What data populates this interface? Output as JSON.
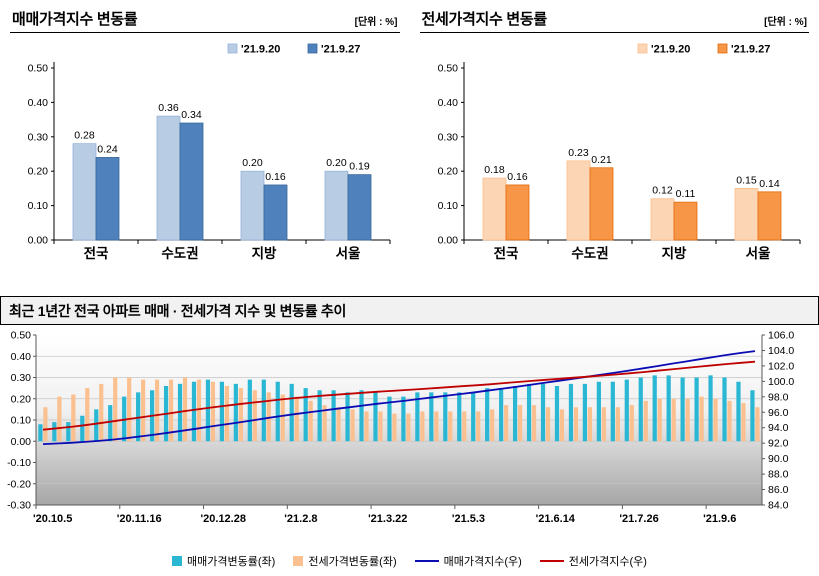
{
  "chart_data": [
    {
      "id": "sale",
      "type": "bar",
      "title": "매매가격지수 변동률",
      "unit_label": "[단위 : %]",
      "categories": [
        "전국",
        "수도권",
        "지방",
        "서울"
      ],
      "y_tick_labels": [
        "0.00",
        "0.10",
        "0.20",
        "0.30",
        "0.40",
        "0.50"
      ],
      "ylim": [
        0,
        0.5
      ],
      "series": [
        {
          "name": "'21.9.20",
          "color": "#b8cce4",
          "border": "#95b3d7",
          "values": [
            0.28,
            0.36,
            0.2,
            0.2
          ]
        },
        {
          "name": "'21.9.27",
          "color": "#4f81bd",
          "border": "#3a6799",
          "values": [
            0.24,
            0.34,
            0.16,
            0.19
          ]
        }
      ]
    },
    {
      "id": "jeonse",
      "type": "bar",
      "title": "전세가격지수 변동률",
      "unit_label": "[단위 : %]",
      "categories": [
        "전국",
        "수도권",
        "지방",
        "서울"
      ],
      "y_tick_labels": [
        "0.00",
        "0.10",
        "0.20",
        "0.30",
        "0.40",
        "0.50"
      ],
      "ylim": [
        0,
        0.5
      ],
      "series": [
        {
          "name": "'21.9.20",
          "color": "#fcd5b4",
          "border": "#fabf8f",
          "values": [
            0.18,
            0.23,
            0.12,
            0.15
          ]
        },
        {
          "name": "'21.9.27",
          "color": "#f79646",
          "border": "#e26b0a",
          "values": [
            0.16,
            0.21,
            0.11,
            0.14
          ]
        }
      ]
    },
    {
      "id": "trend",
      "type": "combo-bar-line",
      "title": "최근 1년간 전국 아파트 매매 · 전세가격 지수 및 변동률 추이",
      "x_tick_labels": [
        "'20.10.5",
        "'20.11.16",
        "'20.12.28",
        "'21.2.8",
        "'21.3.22",
        "'21.5.3",
        "'21.6.14",
        "'21.7.26",
        "'21.9.6"
      ],
      "x_tick_weeks": [
        0,
        6,
        12,
        18,
        24,
        30,
        36,
        42,
        48
      ],
      "left_axis": {
        "min": -0.3,
        "max": 0.5,
        "step": 0.1
      },
      "right_axis": {
        "min": 84,
        "max": 106,
        "step": 2
      },
      "left_tick_labels": [
        "0.50",
        "0.40",
        "0.30",
        "0.20",
        "0.10",
        "0.00",
        "-0.10",
        "-0.20",
        "-0.30"
      ],
      "right_tick_labels": [
        "106.0",
        "104.0",
        "102.0",
        "100.0",
        "98.0",
        "96.0",
        "94.0",
        "92.0",
        "90.0",
        "88.0",
        "86.0",
        "84.0"
      ],
      "bar_series": [
        {
          "name": "매매가격변동률(좌)",
          "color": "#29b7d3",
          "values": [
            0.08,
            0.09,
            0.09,
            0.12,
            0.15,
            0.17,
            0.21,
            0.23,
            0.24,
            0.26,
            0.27,
            0.28,
            0.29,
            0.28,
            0.27,
            0.29,
            0.29,
            0.28,
            0.27,
            0.25,
            0.24,
            0.24,
            0.23,
            0.24,
            0.23,
            0.21,
            0.21,
            0.23,
            0.23,
            0.23,
            0.23,
            0.23,
            0.25,
            0.25,
            0.26,
            0.27,
            0.27,
            0.26,
            0.27,
            0.27,
            0.28,
            0.28,
            0.29,
            0.3,
            0.31,
            0.31,
            0.3,
            0.3,
            0.31,
            0.3,
            0.28,
            0.24
          ]
        },
        {
          "name": "전세가격변동률(좌)",
          "color": "#fac08f",
          "values": [
            0.16,
            0.21,
            0.22,
            0.25,
            0.27,
            0.3,
            0.3,
            0.29,
            0.29,
            0.29,
            0.3,
            0.29,
            0.28,
            0.26,
            0.25,
            0.24,
            0.23,
            0.22,
            0.21,
            0.19,
            0.17,
            0.16,
            0.15,
            0.14,
            0.14,
            0.13,
            0.13,
            0.14,
            0.14,
            0.14,
            0.14,
            0.14,
            0.15,
            0.17,
            0.17,
            0.17,
            0.16,
            0.15,
            0.16,
            0.16,
            0.16,
            0.16,
            0.17,
            0.19,
            0.2,
            0.2,
            0.2,
            0.21,
            0.2,
            0.19,
            0.18,
            0.16
          ]
        }
      ],
      "line_series": [
        {
          "name": "매매가격지수(우)",
          "color": "#0b0bb4",
          "values": [
            91.88,
            91.96,
            92.05,
            92.16,
            92.3,
            92.47,
            92.66,
            92.88,
            93.11,
            93.36,
            93.61,
            93.88,
            94.16,
            94.42,
            94.68,
            94.95,
            95.23,
            95.5,
            95.75,
            95.99,
            96.22,
            96.45,
            96.66,
            96.89,
            97.11,
            97.31,
            97.51,
            97.73,
            97.95,
            98.17,
            98.38,
            98.6,
            98.84,
            99.08,
            99.32,
            99.58,
            99.84,
            100.08,
            100.34,
            100.6,
            100.86,
            101.13,
            101.4,
            101.69,
            101.98,
            102.28,
            102.56,
            102.85,
            103.14,
            103.43,
            103.69,
            103.92
          ]
        },
        {
          "name": "전세가격지수(우)",
          "color": "#c00000",
          "values": [
            93.74,
            93.92,
            94.11,
            94.33,
            94.57,
            94.83,
            95.09,
            95.34,
            95.59,
            95.84,
            96.11,
            96.36,
            96.6,
            96.83,
            97.05,
            97.25,
            97.45,
            97.65,
            97.83,
            97.99,
            98.14,
            98.28,
            98.41,
            98.53,
            98.66,
            98.77,
            98.88,
            99.0,
            99.12,
            99.25,
            99.37,
            99.49,
            99.62,
            99.77,
            99.92,
            100.06,
            100.2,
            100.33,
            100.47,
            100.61,
            100.75,
            100.89,
            101.04,
            101.2,
            101.38,
            101.55,
            101.73,
            101.91,
            102.08,
            102.25,
            102.4,
            102.54
          ]
        }
      ]
    }
  ]
}
